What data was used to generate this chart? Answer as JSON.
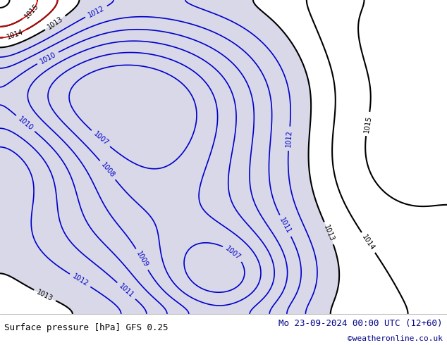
{
  "title_left": "Surface pressure [hPa] GFS 0.25",
  "title_right": "Mo 23-09-2024 00:00 UTC (12+60)",
  "copyright": "©weatheronline.co.uk",
  "bg_color": "#a8d878",
  "low_area_color": "#d8d8e8",
  "footer_bg": "#ffffff",
  "footer_text_color": "#000000",
  "title_color_left": "#000000",
  "title_color_right": "#000066",
  "copyright_color": "#000088",
  "contour_color_main": "#000000",
  "contour_color_blue": "#0000cc",
  "contour_color_red": "#cc0000"
}
